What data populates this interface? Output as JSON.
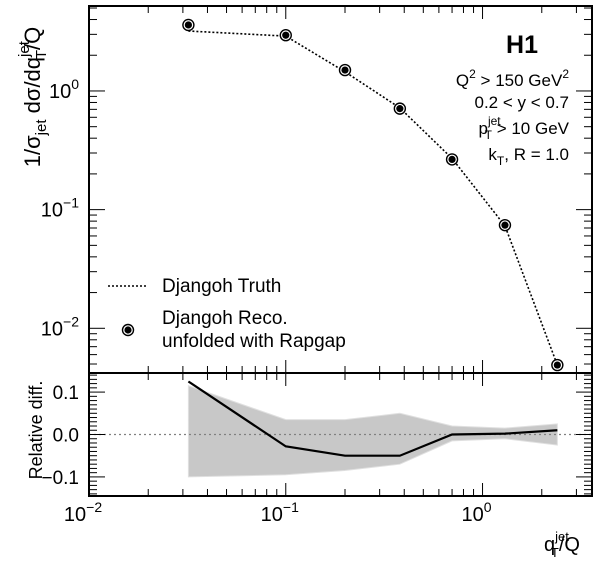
{
  "chart_data": {
    "type": "scatter",
    "experiment_label": "H1",
    "cuts": [
      {
        "base": "Q",
        "sup": "2",
        "rest": " > 150 GeV",
        "rest_sup": "2"
      },
      {
        "text": "0.2 < y < 0.7"
      },
      {
        "base": "p",
        "sub": "T",
        "sup": "jet",
        "rest": " > 10 GeV"
      },
      {
        "base": "k",
        "sub": "T",
        "rest": ", R = 1.0"
      }
    ],
    "x_axis": {
      "scale": "log",
      "xlim": [
        0.01,
        3.6
      ],
      "tick_labels": [
        {
          "value": 0.01,
          "base": "10",
          "exp": "−2"
        },
        {
          "value": 0.1,
          "base": "10",
          "exp": "−1"
        },
        {
          "value": 1,
          "base": "10",
          "exp": "0"
        }
      ],
      "label": {
        "pre": "q",
        "sub": "T",
        "sup": "jet",
        "post": "/Q"
      }
    },
    "top_panel": {
      "scale": "log",
      "ylim": [
        0.0042,
        5.2
      ],
      "tick_labels": [
        {
          "value": 0.01,
          "base": "10",
          "exp": "−2"
        },
        {
          "value": 0.1,
          "base": "10",
          "exp": "−1"
        },
        {
          "value": 1,
          "base": "10",
          "exp": "0"
        }
      ],
      "ylabel": {
        "p1": "1/σ",
        "s1": "jet",
        "p2": " dσ/dq",
        "sub2": "T",
        "sup2": "jet",
        "p3": "/Q"
      },
      "series": [
        {
          "name": "Djangoh Truth",
          "style": "dotted-line",
          "x": [
            0.032,
            0.1,
            0.2,
            0.38,
            0.7,
            1.3,
            2.4
          ],
          "y": [
            3.2,
            2.9,
            1.45,
            0.72,
            0.27,
            0.073,
            0.0049
          ]
        },
        {
          "name_lines": [
            "Djangoh Reco.",
            "unfolded with Rapgap"
          ],
          "style": "marker",
          "x": [
            0.032,
            0.1,
            0.2,
            0.38,
            0.7,
            1.3,
            2.4
          ],
          "y": [
            3.6,
            2.95,
            1.5,
            0.71,
            0.265,
            0.074,
            0.0049
          ]
        }
      ]
    },
    "bottom_panel": {
      "ylabel": "Relative diff.",
      "ylim": [
        -0.145,
        0.145
      ],
      "ticks": [
        -0.1,
        0.0,
        0.1
      ],
      "tick_labels": [
        "−0.1",
        "0.0",
        "0.1"
      ],
      "x": [
        0.032,
        0.1,
        0.2,
        0.38,
        0.7,
        1.3,
        2.4
      ],
      "relative_diff": [
        0.125,
        -0.028,
        -0.05,
        -0.05,
        0.0,
        0.002,
        0.01
      ],
      "band_upper": [
        0.115,
        0.035,
        0.035,
        0.05,
        0.02,
        0.015,
        0.025
      ],
      "band_lower": [
        -0.1,
        -0.095,
        -0.085,
        -0.07,
        -0.015,
        -0.01,
        -0.025
      ],
      "reference_line": 0.0
    },
    "colors": {
      "band": "#c8c8c8",
      "line": "#000000",
      "reference": "#808080"
    }
  }
}
